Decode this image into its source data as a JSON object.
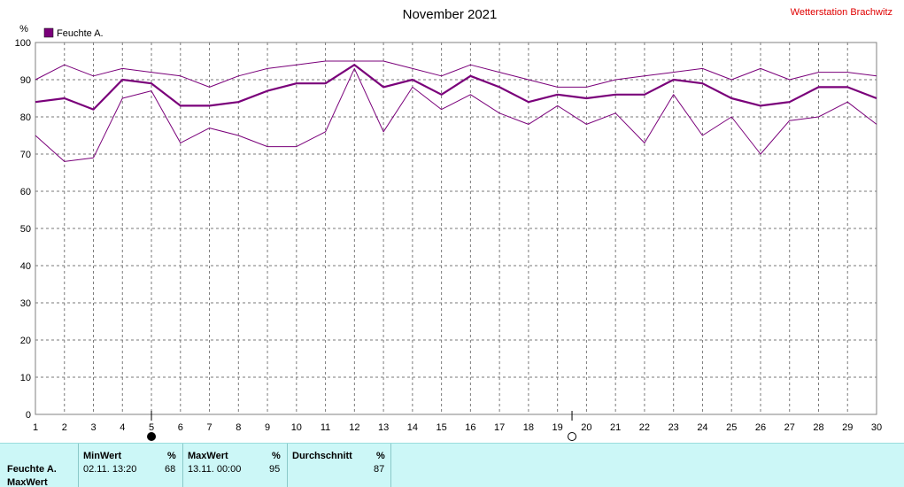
{
  "header": {
    "title": "November 2021",
    "station": "Wetterstation Brachwitz"
  },
  "legend": {
    "label": "Feuchte A.",
    "color": "#7a007a"
  },
  "axis": {
    "unit": "%"
  },
  "moon_phases": [
    {
      "name": "full-moon-icon",
      "day": 5
    },
    {
      "name": "new-moon-icon",
      "day": 19.5
    }
  ],
  "chart_data": {
    "type": "line",
    "x": [
      1,
      2,
      3,
      4,
      5,
      6,
      7,
      8,
      9,
      10,
      11,
      12,
      13,
      14,
      15,
      16,
      17,
      18,
      19,
      20,
      21,
      22,
      23,
      24,
      25,
      26,
      27,
      28,
      29,
      30
    ],
    "xlim": [
      1,
      30
    ],
    "ylim": [
      0,
      100
    ],
    "yticks": [
      0,
      10,
      20,
      30,
      40,
      50,
      60,
      70,
      80,
      90,
      100
    ],
    "ylabel": "%",
    "grid": true,
    "legend_position": "top-left",
    "series": [
      {
        "name": "Feuchte A.",
        "role": "max",
        "values": [
          90,
          94,
          91,
          93,
          92,
          91,
          88,
          91,
          93,
          94,
          95,
          95,
          95,
          93,
          91,
          94,
          92,
          90,
          88,
          88,
          90,
          91,
          92,
          93,
          90,
          93,
          90,
          92,
          92,
          91
        ]
      },
      {
        "name": "Feuchte A.",
        "role": "avg",
        "values": [
          84,
          85,
          82,
          90,
          89,
          83,
          83,
          84,
          87,
          89,
          89,
          94,
          88,
          90,
          86,
          91,
          88,
          84,
          86,
          85,
          86,
          86,
          90,
          89,
          85,
          83,
          84,
          88,
          88,
          85
        ]
      },
      {
        "name": "Feuchte A.",
        "role": "min",
        "values": [
          75,
          68,
          69,
          85,
          87,
          73,
          77,
          75,
          72,
          72,
          76,
          93,
          76,
          88,
          82,
          86,
          81,
          78,
          83,
          78,
          81,
          73,
          86,
          75,
          80,
          70,
          79,
          80,
          84,
          78
        ]
      }
    ]
  },
  "stats": {
    "row_label": "Feuchte A.",
    "row_label2": "MaxWert",
    "min": {
      "header": "MinWert",
      "unit": "%",
      "time": "02.11.  13:20",
      "value": "68"
    },
    "max": {
      "header": "MaxWert",
      "unit": "%",
      "time": "13.11.  00:00",
      "value": "95"
    },
    "avg": {
      "header": "Durchschnitt",
      "unit": "%",
      "value": "87"
    }
  }
}
